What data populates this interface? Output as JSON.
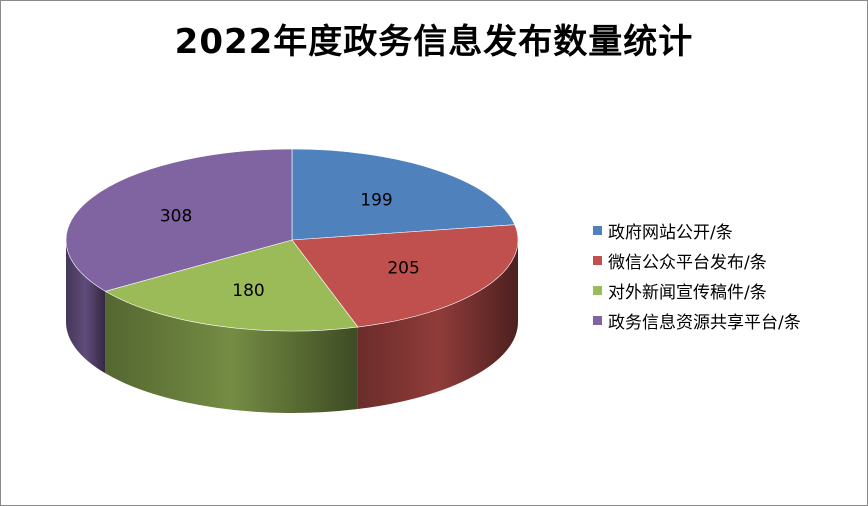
{
  "chart_data": {
    "type": "pie",
    "title": "2022年度政务信息发布数量统计",
    "categories": [
      "政府网站公开/条",
      "微信公众平台发布/条",
      "对外新闻宣传稿件/条",
      "政务信息资源共享平台/条"
    ],
    "values": [
      199,
      205,
      180,
      308
    ],
    "colors": [
      "#4f81bd",
      "#c0504d",
      "#9bbb59",
      "#8064a2"
    ],
    "legend": "right"
  }
}
